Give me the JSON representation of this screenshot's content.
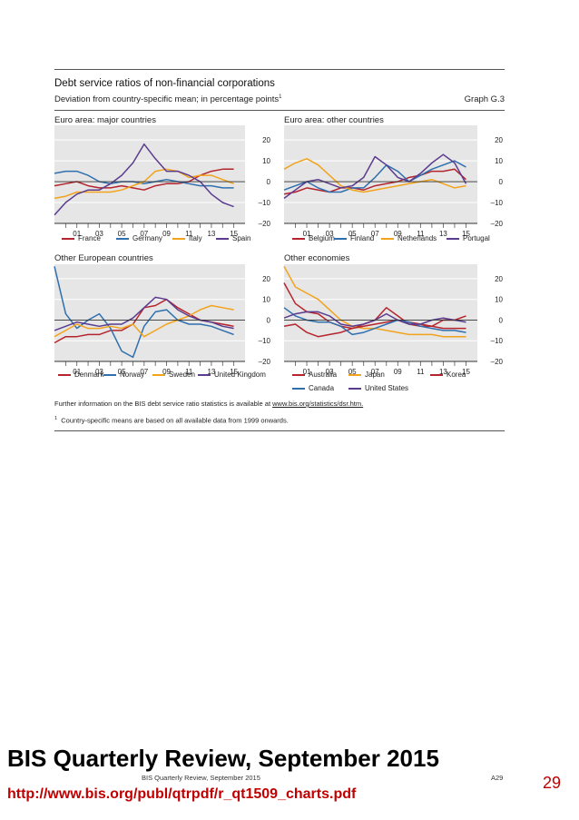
{
  "header": {
    "title": "Debt service ratios of non-financial corporations",
    "subtitle": "Deviation from country-specific mean; in percentage points",
    "subtitle_sup": "1",
    "graph_label": "Graph G.3"
  },
  "footnotes": {
    "further_info_prefix": "Further information on the BIS debt service ratio statistics is available at ",
    "further_info_link": "www.bis.org/statistics/dsr.htm.",
    "note_marker": "1",
    "note_text": "Country-specific means are based on all available data from 1999 onwards."
  },
  "footer": {
    "publication": "BIS Quarterly Review, September 2015",
    "page": "A29"
  },
  "overlay": {
    "banner": "BIS Quarterly Review, September 2015",
    "url": "http://www.bis.org/publ/qtrpdf/r_qt1509_charts.pdf",
    "slide_number": "29"
  },
  "chart_data": [
    {
      "type": "line",
      "title": "Euro area: major countries",
      "x_ticks": [
        "01",
        "03",
        "05",
        "07",
        "09",
        "11",
        "13",
        "15"
      ],
      "y_ticks": [
        "20",
        "10",
        "0",
        "–10",
        "–20"
      ],
      "ylim": [
        -20,
        27
      ],
      "xlim": [
        1999,
        2016
      ],
      "grid": true,
      "legend_position": "bottom",
      "series": [
        {
          "name": "France",
          "color": "#b5242c",
          "x": [
            1999,
            2000,
            2001,
            2002,
            2003,
            2004,
            2005,
            2006,
            2007,
            2008,
            2009,
            2010,
            2011,
            2012,
            2013,
            2014,
            2015
          ],
          "y": [
            -2,
            -1,
            0,
            -2,
            -3,
            -3,
            -2,
            -3,
            -4,
            -2,
            -1,
            -1,
            0,
            3,
            5,
            6,
            6
          ]
        },
        {
          "name": "Germany",
          "color": "#2f6fae",
          "x": [
            1999,
            2000,
            2001,
            2002,
            2003,
            2004,
            2005,
            2006,
            2007,
            2008,
            2009,
            2010,
            2011,
            2012,
            2013,
            2014,
            2015
          ],
          "y": [
            4,
            5,
            5,
            3,
            0,
            -1,
            0,
            0,
            -1,
            0,
            1,
            0,
            -1,
            -2,
            -2,
            -3,
            -3
          ]
        },
        {
          "name": "Italy",
          "color": "#f2a31c",
          "x": [
            1999,
            2000,
            2001,
            2002,
            2003,
            2004,
            2005,
            2006,
            2007,
            2008,
            2009,
            2010,
            2011,
            2012,
            2013,
            2014,
            2015
          ],
          "y": [
            -8,
            -7,
            -5,
            -5,
            -5,
            -5,
            -4,
            -2,
            0,
            5,
            6,
            5,
            2,
            3,
            3,
            1,
            -1
          ]
        },
        {
          "name": "Spain",
          "color": "#5b3b8e",
          "x": [
            1999,
            2000,
            2001,
            2002,
            2003,
            2004,
            2005,
            2006,
            2007,
            2008,
            2009,
            2010,
            2011,
            2012,
            2013,
            2014,
            2015
          ],
          "y": [
            -16,
            -10,
            -6,
            -4,
            -4,
            -1,
            3,
            9,
            18,
            11,
            5,
            5,
            3,
            0,
            -6,
            -10,
            -12
          ]
        }
      ]
    },
    {
      "type": "line",
      "title": "Euro area: other countries",
      "x_ticks": [
        "01",
        "03",
        "05",
        "07",
        "09",
        "11",
        "13",
        "15"
      ],
      "y_ticks": [
        "20",
        "10",
        "0",
        "–10",
        "–20"
      ],
      "ylim": [
        -20,
        27
      ],
      "xlim": [
        1999,
        2016
      ],
      "grid": true,
      "legend_position": "bottom",
      "series": [
        {
          "name": "Belgium",
          "color": "#b5242c",
          "x": [
            1999,
            2000,
            2001,
            2002,
            2003,
            2004,
            2005,
            2006,
            2007,
            2008,
            2009,
            2010,
            2011,
            2012,
            2013,
            2014,
            2015
          ],
          "y": [
            -6,
            -5,
            -3,
            -4,
            -5,
            -3,
            -3,
            -4,
            -2,
            -1,
            0,
            2,
            3,
            5,
            5,
            6,
            1
          ]
        },
        {
          "name": "Finland",
          "color": "#2f6fae",
          "x": [
            1999,
            2000,
            2001,
            2002,
            2003,
            2004,
            2005,
            2006,
            2007,
            2008,
            2009,
            2010,
            2011,
            2012,
            2013,
            2014,
            2015
          ],
          "y": [
            -4,
            -2,
            0,
            -3,
            -5,
            -5,
            -3,
            -3,
            2,
            8,
            5,
            0,
            3,
            6,
            8,
            10,
            7
          ]
        },
        {
          "name": "Netherlands",
          "color": "#f2a31c",
          "x": [
            1999,
            2000,
            2001,
            2002,
            2003,
            2004,
            2005,
            2006,
            2007,
            2008,
            2009,
            2010,
            2011,
            2012,
            2013,
            2014,
            2015
          ],
          "y": [
            6,
            9,
            11,
            8,
            3,
            -2,
            -4,
            -5,
            -4,
            -3,
            -2,
            -1,
            0,
            1,
            -1,
            -3,
            -2
          ]
        },
        {
          "name": "Portugal",
          "color": "#5b3b8e",
          "x": [
            1999,
            2000,
            2001,
            2002,
            2003,
            2004,
            2005,
            2006,
            2007,
            2008,
            2009,
            2010,
            2011,
            2012,
            2013,
            2014,
            2015
          ],
          "y": [
            -8,
            -4,
            0,
            1,
            -1,
            -3,
            -2,
            2,
            12,
            8,
            2,
            0,
            4,
            9,
            13,
            9,
            -1
          ]
        }
      ]
    },
    {
      "type": "line",
      "title": "Other European countries",
      "x_ticks": [
        "01",
        "03",
        "05",
        "07",
        "09",
        "11",
        "13",
        "15"
      ],
      "y_ticks": [
        "20",
        "10",
        "0",
        "–10",
        "–20"
      ],
      "ylim": [
        -20,
        27
      ],
      "xlim": [
        1999,
        2016
      ],
      "grid": true,
      "legend_position": "bottom",
      "series": [
        {
          "name": "Denmark",
          "color": "#b5242c",
          "x": [
            1999,
            2000,
            2001,
            2002,
            2003,
            2004,
            2005,
            2006,
            2007,
            2008,
            2009,
            2010,
            2011,
            2012,
            2013,
            2014,
            2015
          ],
          "y": [
            -11,
            -8,
            -8,
            -7,
            -7,
            -5,
            -5,
            -2,
            6,
            7,
            10,
            6,
            3,
            0,
            -1,
            -2,
            -3
          ]
        },
        {
          "name": "Norway",
          "color": "#2f6fae",
          "x": [
            1999,
            2000,
            2001,
            2002,
            2003,
            2004,
            2005,
            2006,
            2007,
            2008,
            2009,
            2010,
            2011,
            2012,
            2013,
            2014,
            2015
          ],
          "y": [
            26,
            3,
            -4,
            0,
            3,
            -4,
            -15,
            -18,
            -3,
            4,
            5,
            0,
            -2,
            -2,
            -3,
            -5,
            -7
          ]
        },
        {
          "name": "Sweden",
          "color": "#f2a31c",
          "x": [
            1999,
            2000,
            2001,
            2002,
            2003,
            2004,
            2005,
            2006,
            2007,
            2008,
            2009,
            2010,
            2011,
            2012,
            2013,
            2014,
            2015
          ],
          "y": [
            -8,
            -5,
            -2,
            -4,
            -4,
            -3,
            -4,
            -2,
            -8,
            -5,
            -2,
            0,
            2,
            5,
            7,
            6,
            5
          ]
        },
        {
          "name": "United Kingdom",
          "color": "#5b3b8e",
          "x": [
            1999,
            2000,
            2001,
            2002,
            2003,
            2004,
            2005,
            2006,
            2007,
            2008,
            2009,
            2010,
            2011,
            2012,
            2013,
            2014,
            2015
          ],
          "y": [
            -5,
            -3,
            -1,
            -2,
            -3,
            -2,
            -2,
            1,
            6,
            11,
            10,
            5,
            2,
            0,
            -1,
            -3,
            -4
          ]
        }
      ]
    },
    {
      "type": "line",
      "title": "Other economies",
      "x_ticks": [
        "01",
        "03",
        "05",
        "07",
        "09",
        "11",
        "13",
        "15"
      ],
      "y_ticks": [
        "20",
        "10",
        "0",
        "–10",
        "–20"
      ],
      "ylim": [
        -20,
        27
      ],
      "xlim": [
        1999,
        2016
      ],
      "grid": true,
      "legend_position": "bottom",
      "series": [
        {
          "name": "Australia",
          "color": "#b5242c",
          "x": [
            1999,
            2000,
            2001,
            2002,
            2003,
            2004,
            2005,
            2006,
            2007,
            2008,
            2009,
            2010,
            2011,
            2012,
            2013,
            2014,
            2015
          ],
          "y": [
            -3,
            -2,
            -6,
            -8,
            -7,
            -6,
            -4,
            -2,
            0,
            6,
            2,
            -2,
            -3,
            -3,
            0,
            0,
            2
          ]
        },
        {
          "name": "Japan",
          "color": "#f2a31c",
          "x": [
            1999,
            2000,
            2001,
            2002,
            2003,
            2004,
            2005,
            2006,
            2007,
            2008,
            2009,
            2010,
            2011,
            2012,
            2013,
            2014,
            2015
          ],
          "y": [
            26,
            16,
            13,
            10,
            5,
            0,
            -3,
            -4,
            -4,
            -5,
            -6,
            -7,
            -7,
            -7,
            -8,
            -8,
            -8
          ]
        },
        {
          "name": "Korea",
          "color": "#b5242c",
          "x": [
            1999,
            2000,
            2001,
            2002,
            2003,
            2004,
            2005,
            2006,
            2007,
            2008,
            2009,
            2010,
            2011,
            2012,
            2013,
            2014,
            2015
          ],
          "y": [
            18,
            8,
            4,
            3,
            -1,
            -3,
            -4,
            -3,
            -2,
            -1,
            0,
            -1,
            -2,
            -3,
            -4,
            -4,
            -4
          ]
        },
        {
          "name": "Canada",
          "color": "#2f6fae",
          "x": [
            1999,
            2000,
            2001,
            2002,
            2003,
            2004,
            2005,
            2006,
            2007,
            2008,
            2009,
            2010,
            2011,
            2012,
            2013,
            2014,
            2015
          ],
          "y": [
            6,
            2,
            0,
            -1,
            -1,
            -3,
            -7,
            -6,
            -4,
            -2,
            0,
            -1,
            -3,
            -4,
            -5,
            -5,
            -6
          ]
        },
        {
          "name": "United States",
          "color": "#5b3b8e",
          "x": [
            1999,
            2000,
            2001,
            2002,
            2003,
            2004,
            2005,
            2006,
            2007,
            2008,
            2009,
            2010,
            2011,
            2012,
            2013,
            2014,
            2015
          ],
          "y": [
            1,
            3,
            4,
            4,
            2,
            -2,
            -3,
            -2,
            0,
            3,
            0,
            -2,
            -2,
            0,
            1,
            0,
            -1
          ]
        }
      ]
    }
  ]
}
